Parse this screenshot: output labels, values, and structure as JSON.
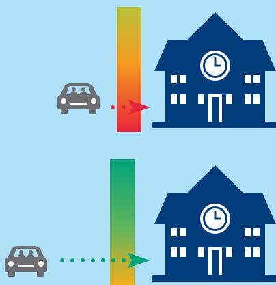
{
  "background": "#aee0f7",
  "colors": {
    "school": "#003b7a",
    "car": "#6d6e71",
    "top_arrow": "#e8253a",
    "bottom_arrow": "#00a47a"
  },
  "scenes": [
    {
      "icons": [
        "car-icon",
        "school-icon"
      ],
      "barrier_gradient": [
        "#b8c23a",
        "#f59c20",
        "#e8253a"
      ],
      "arrow_color": "#e8253a",
      "trail_dots": 2
    },
    {
      "icons": [
        "car-icon",
        "school-icon"
      ],
      "barrier_gradient": [
        "#00a47a",
        "#62b45c",
        "#f2b01d"
      ],
      "arrow_color": "#00a47a",
      "trail_dots": 6
    }
  ]
}
